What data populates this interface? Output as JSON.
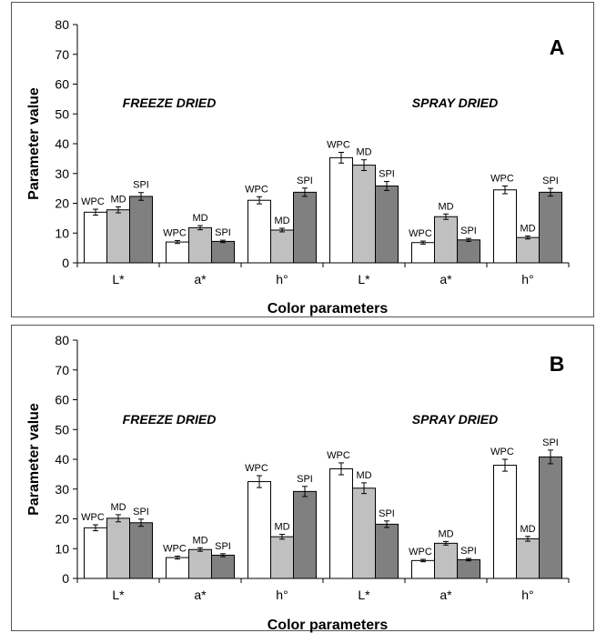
{
  "chart_data": [
    {
      "type": "bar",
      "panel": "A",
      "ylabel": "Parameter value",
      "xlabel": "Color parameters",
      "ylim": [
        0,
        80
      ],
      "yticks": [
        "0",
        "10",
        "20",
        "30",
        "40",
        "50",
        "60",
        "70",
        "80"
      ],
      "group_titles": [
        "FREEZE DRIED",
        "SPRAY DRIED"
      ],
      "categories": [
        "L*",
        "a*",
        "h°",
        "L*",
        "a*",
        "h°"
      ],
      "series": [
        {
          "name": "WPC",
          "color": "#ffffff",
          "values": [
            17,
            7,
            21,
            35.3,
            6.8,
            24.5
          ],
          "errors": [
            1,
            0.5,
            1.2,
            1.8,
            0.5,
            1.3
          ]
        },
        {
          "name": "MD",
          "color": "#c0c0c0",
          "values": [
            17.8,
            11.8,
            11,
            32.8,
            15.5,
            8.5
          ],
          "errors": [
            1,
            0.7,
            0.6,
            1.8,
            0.9,
            0.5
          ]
        },
        {
          "name": "SPI",
          "color": "#808080",
          "values": [
            22.3,
            7.2,
            23.7,
            25.8,
            7.7,
            23.7
          ],
          "errors": [
            1.3,
            0.4,
            1.4,
            1.5,
            0.5,
            1.3
          ]
        }
      ]
    },
    {
      "type": "bar",
      "panel": "B",
      "ylabel": "Parameter value",
      "xlabel": "Color parameters",
      "ylim": [
        0,
        80
      ],
      "yticks": [
        "0",
        "10",
        "20",
        "30",
        "40",
        "50",
        "60",
        "70",
        "80"
      ],
      "group_titles": [
        "FREEZE DRIED",
        "SPRAY DRIED"
      ],
      "categories": [
        "L*",
        "a*",
        "h°",
        "L*",
        "a*",
        "h°"
      ],
      "series": [
        {
          "name": "WPC",
          "color": "#ffffff",
          "values": [
            17,
            7,
            32.5,
            36.8,
            6,
            38
          ],
          "errors": [
            1,
            0.5,
            2,
            2,
            0.4,
            2
          ]
        },
        {
          "name": "MD",
          "color": "#c0c0c0",
          "values": [
            20.2,
            9.7,
            14,
            30.3,
            11.8,
            13.3
          ],
          "errors": [
            1.2,
            0.6,
            0.8,
            1.8,
            0.6,
            0.8
          ]
        },
        {
          "name": "SPI",
          "color": "#808080",
          "values": [
            18.7,
            7.8,
            29.2,
            18.2,
            6.3,
            40.8
          ],
          "errors": [
            1.2,
            0.5,
            1.7,
            1.1,
            0.4,
            2.3
          ]
        }
      ]
    }
  ]
}
